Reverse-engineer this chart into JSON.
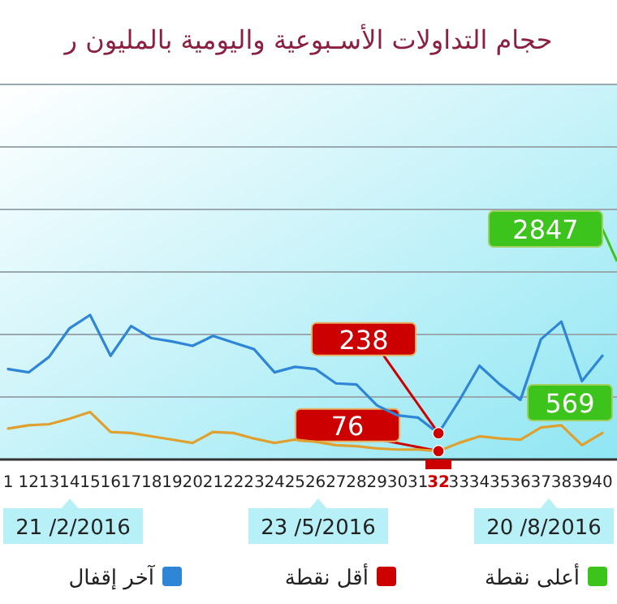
{
  "chart_data": {
    "type": "line",
    "title": "حجام التداولات الأسـبوعية واليومية بالمليون ر",
    "grid": true,
    "ylim": [
      0,
      3400
    ],
    "tick_labels": "x",
    "categories": [
      "1",
      "12",
      "13",
      "14",
      "15",
      "16",
      "17",
      "18",
      "19",
      "20",
      "21",
      "22",
      "23",
      "24",
      "25",
      "26",
      "27",
      "28",
      "29",
      "30",
      "31",
      "32",
      "33",
      "34",
      "35",
      "36",
      "37",
      "38",
      "39",
      "40"
    ],
    "series": [
      {
        "color": "#2f86d6",
        "values": [
          820,
          790,
          930,
          1190,
          1310,
          940,
          1210,
          1100,
          1070,
          1030,
          1120,
          1060,
          1000,
          790,
          840,
          820,
          690,
          680,
          490,
          400,
          380,
          238,
          530,
          850,
          680,
          540,
          1090,
          1250,
          710,
          940
        ],
        "value_labels": [
          null,
          null,
          null,
          null,
          null,
          null,
          null,
          null,
          null,
          null,
          null,
          null,
          null,
          null,
          null,
          null,
          null,
          null,
          null,
          null,
          null,
          "238",
          null,
          null,
          null,
          null,
          null,
          null,
          null,
          null
        ]
      },
      {
        "color": "#e0a030",
        "values": [
          280,
          310,
          320,
          370,
          430,
          250,
          240,
          210,
          180,
          150,
          250,
          240,
          190,
          150,
          180,
          160,
          130,
          120,
          100,
          90,
          90,
          76,
          150,
          210,
          190,
          180,
          290,
          310,
          130,
          240
        ],
        "value_labels": [
          null,
          null,
          null,
          null,
          null,
          null,
          null,
          null,
          null,
          null,
          null,
          null,
          null,
          null,
          null,
          null,
          null,
          null,
          null,
          null,
          null,
          "76",
          null,
          null,
          null,
          null,
          null,
          null,
          null,
          null
        ]
      },
      {
        "type": "scatter",
        "color": "#cc0000",
        "x": [
          "32",
          "32"
        ],
        "values": [
          238,
          76
        ]
      }
    ],
    "annotations": [
      "2847",
      "569",
      "21 /2/2016",
      "23 /5/2016",
      "20 /8/2016",
      "أعلى نقطة",
      "أقل نقطة",
      "آخر إقفال"
    ]
  }
}
